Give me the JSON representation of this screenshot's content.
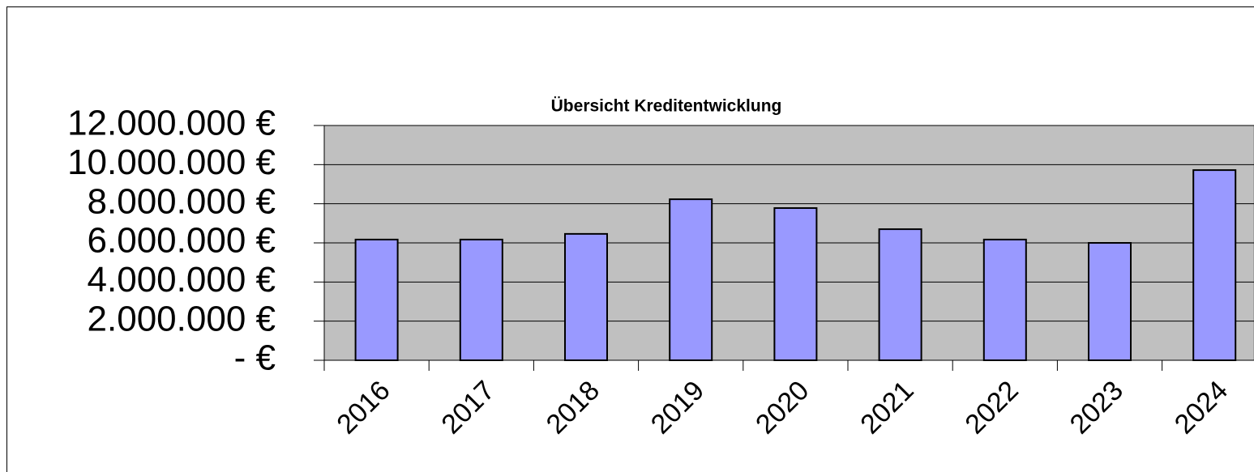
{
  "chart_data": {
    "type": "bar",
    "title": "Übersicht Kreditentwicklung",
    "categories": [
      "2016",
      "2017",
      "2018",
      "2019",
      "2020",
      "2021",
      "2022",
      "2023",
      "2024"
    ],
    "values": [
      6170000,
      6170000,
      6460000,
      8230000,
      7780000,
      6700000,
      6170000,
      6000000,
      9720000
    ],
    "color": "#9999ff",
    "plot_background": "#c0c0c0",
    "ylim": [
      0,
      12000000
    ],
    "yticks": [
      {
        "value": 0,
        "label": "-   €"
      },
      {
        "value": 2000000,
        "label": "2.000.000 €"
      },
      {
        "value": 4000000,
        "label": "4.000.000 €"
      },
      {
        "value": 6000000,
        "label": "6.000.000 €"
      },
      {
        "value": 8000000,
        "label": "8.000.000 €"
      },
      {
        "value": 10000000,
        "label": "10.000.000 €"
      },
      {
        "value": 12000000,
        "label": "12.000.000 €"
      }
    ],
    "grid": true
  }
}
